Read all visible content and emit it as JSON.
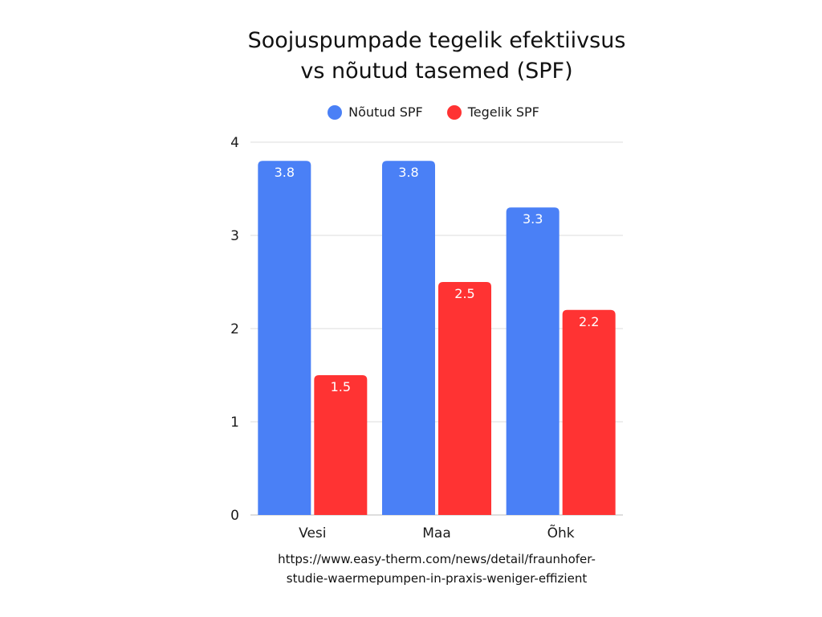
{
  "chart_data": {
    "type": "bar",
    "title_lines": [
      "Soojuspumpade tegelik efektiivsus",
      "vs nõutud tasemed (SPF)"
    ],
    "categories": [
      "Vesi",
      "Maa",
      "Õhk"
    ],
    "series": [
      {
        "name": "Nõutud SPF",
        "color": "#4a80f6",
        "values": [
          3.8,
          3.8,
          3.3
        ]
      },
      {
        "name": "Tegelik SPF",
        "color": "#ff3333",
        "values": [
          1.5,
          2.5,
          2.2
        ]
      }
    ],
    "ylim": [
      0,
      4
    ],
    "y_ticks": [
      0,
      1,
      2,
      3,
      4
    ],
    "grid": true,
    "legend_position": "top-center",
    "data_labels": true
  },
  "source": {
    "lines": [
      "https://www.easy-therm.com/news/detail/fraunhofer-",
      "studie-waermepumpen-in-praxis-weniger-effizient"
    ]
  }
}
